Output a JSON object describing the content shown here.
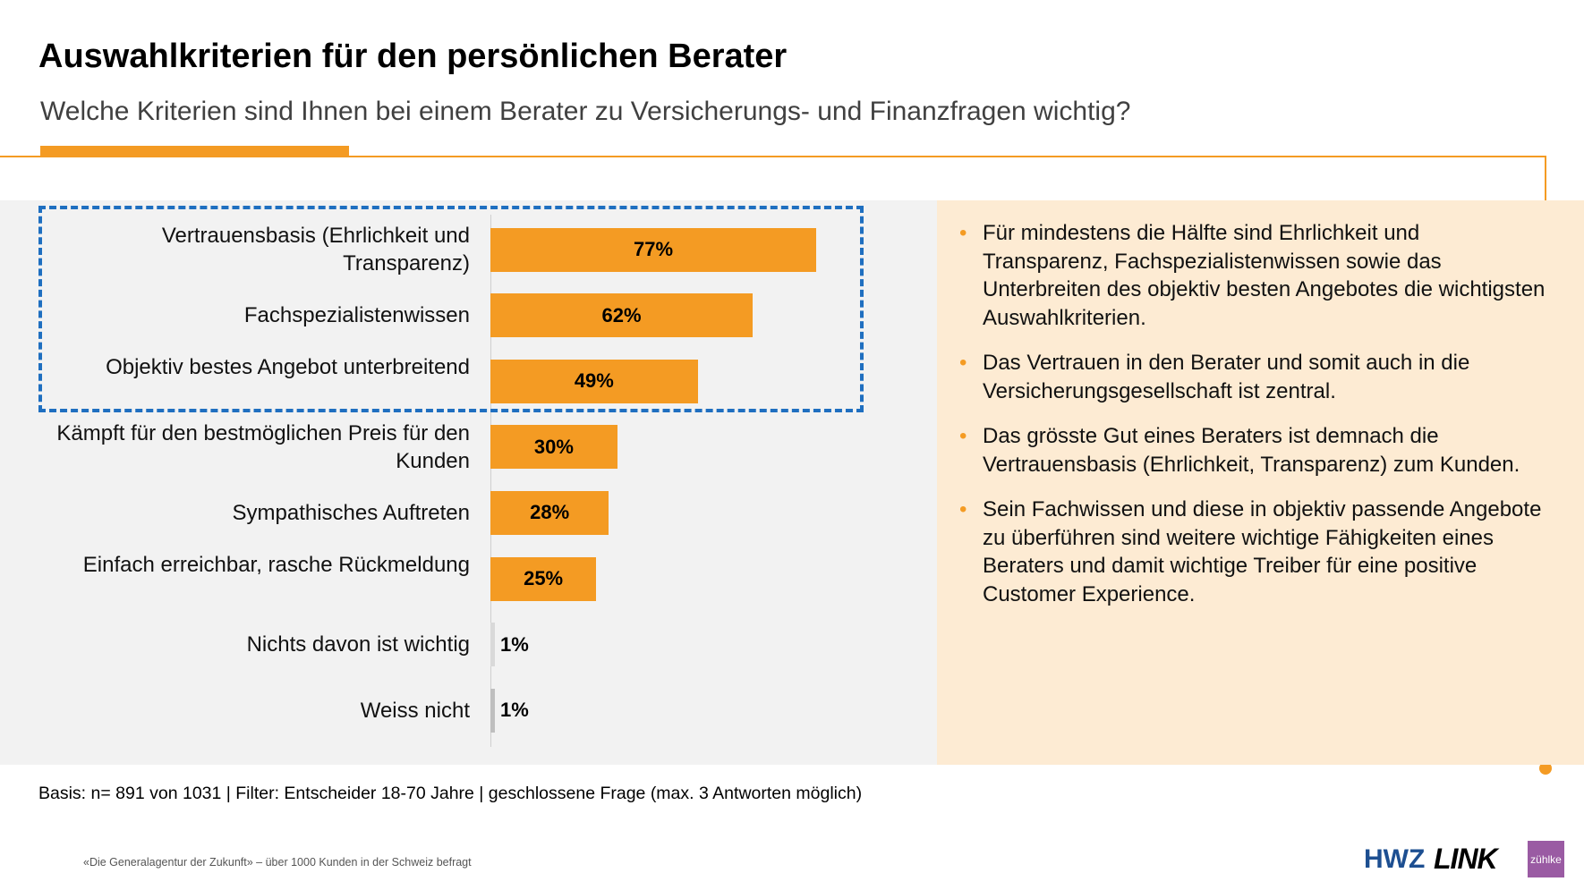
{
  "header": {
    "title": "Auswahlkriterien für den persönlichen Berater",
    "subtitle": "Welche Kriterien sind Ihnen bei einem Berater zu Versicherungs- und Finanzfragen wichtig?"
  },
  "colors": {
    "accent": "#f49b23",
    "bar": "#f49b23",
    "bar_other": "#d9d9d9",
    "bar_unknown": "#bfbfbf",
    "highlight_box": "#1f6fc0",
    "left_panel": "#f2f2f2",
    "right_panel": "#fdebd3"
  },
  "chart_data": {
    "type": "bar",
    "orientation": "horizontal",
    "categories": [
      "Vertrauensbasis (Ehrlichkeit und Transparenz)",
      "Fachspezialistenwissen",
      "Objektiv bestes Angebot unterbreitend",
      "Kämpft für den bestmöglichen Preis für den Kunden",
      "Sympathisches Auftreten",
      "Einfach erreichbar, rasche Rückmeldung",
      "Nichts davon ist wichtig",
      "Weiss nicht"
    ],
    "values": [
      77,
      62,
      49,
      30,
      28,
      25,
      1,
      1
    ],
    "labels": [
      "77%",
      "62%",
      "49%",
      "30%",
      "28%",
      "25%",
      "1%",
      "1%"
    ],
    "highlighted": [
      0,
      1,
      2
    ],
    "xlim": [
      0,
      100
    ],
    "grid": false
  },
  "bullets": [
    "Für mindestens die Hälfte sind Ehrlichkeit und Transparenz, Fachspezialistenwissen sowie das Unterbreiten des objektiv besten Angebotes die wichtigsten Auswahlkriterien.",
    "Das Vertrauen in den Berater und somit auch in die Versicherungsgesellschaft ist zentral.",
    "Das grösste Gut eines Beraters ist demnach die Vertrauensbasis (Ehrlichkeit, Transparenz) zum Kunden.",
    "Sein Fachwissen und diese in objektiv passende Angebote zu überführen sind weitere wichtige Fähigkeiten eines Beraters und damit wichtige Treiber für eine positive Customer Experience."
  ],
  "bullet_char": "•",
  "footer": {
    "basis": "Basis: n= 891 von 1031 | Filter: Entscheider 18-70 Jahre | geschlossene Frage (max. 3 Antworten möglich)",
    "source": "«Die Generalagentur der Zukunft» – über 1000 Kunden in der Schweiz befragt",
    "logos": [
      "HWZ",
      "LINK",
      "zühlke"
    ]
  }
}
